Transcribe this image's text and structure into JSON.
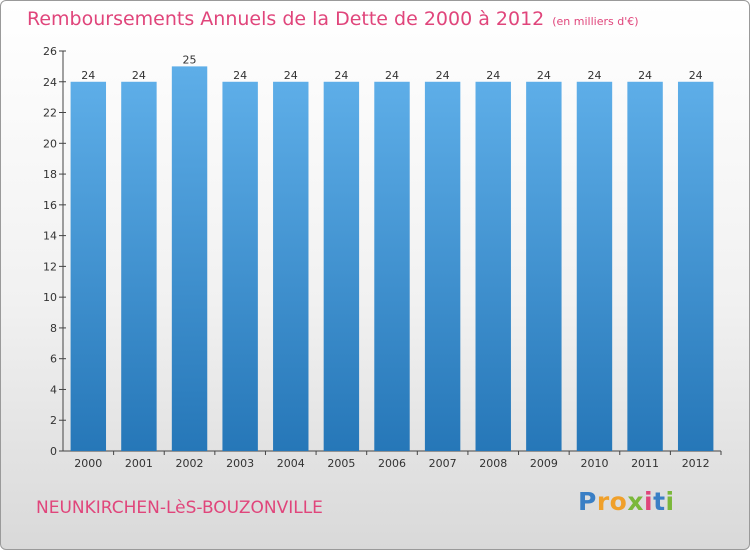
{
  "title": "Remboursements Annuels de la Dette de 2000 à 2012",
  "unit_note": "(en milliers d'€)",
  "commune": "NEUNKIRCHEN-LèS-BOUZONVILLE",
  "logo": {
    "text": "Proxiti",
    "letter_colors": [
      "#3a7fc5",
      "#f0a02a",
      "#f0a02a",
      "#7bb83a",
      "#e0457b",
      "#3a7fc5",
      "#7bb83a"
    ]
  },
  "colors": {
    "title": "#e0457b",
    "bar_top": "#5eaee8",
    "bar_bottom": "#2677b8",
    "axis": "#444444"
  },
  "chart_data": {
    "type": "bar",
    "categories": [
      "2000",
      "2001",
      "2002",
      "2003",
      "2004",
      "2005",
      "2006",
      "2007",
      "2008",
      "2009",
      "2010",
      "2011",
      "2012"
    ],
    "values": [
      24,
      24,
      25,
      24,
      24,
      24,
      24,
      24,
      24,
      24,
      24,
      24,
      24
    ],
    "data_labels": [
      "24",
      "24",
      "25",
      "24",
      "24",
      "24",
      "24",
      "24",
      "24",
      "24",
      "24",
      "24",
      "24"
    ],
    "yticks": [
      0,
      2,
      4,
      6,
      8,
      10,
      12,
      14,
      16,
      18,
      20,
      22,
      24,
      26
    ],
    "ylim": [
      0,
      26
    ],
    "grid": false,
    "xlabel": "",
    "ylabel": ""
  }
}
